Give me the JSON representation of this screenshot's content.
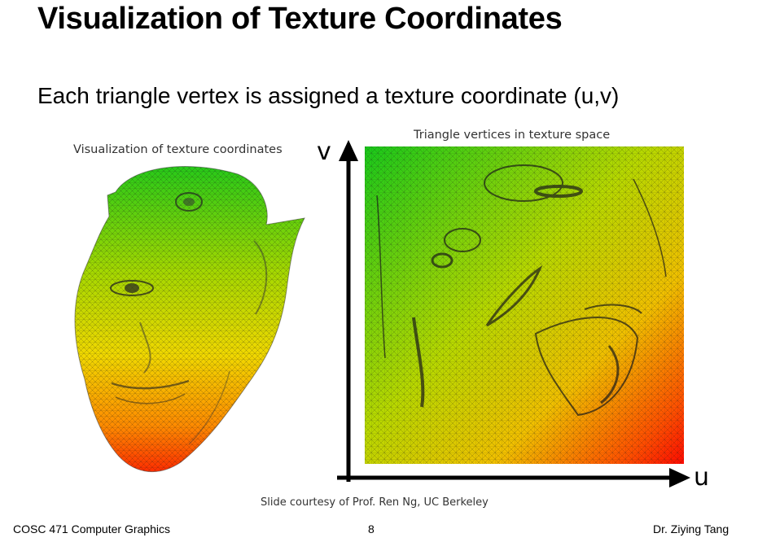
{
  "slide": {
    "title": "Visualization of Texture Coordinates",
    "subtitle": "Each triangle vertex is assigned a texture coordinate (u,v)"
  },
  "figure_left": {
    "caption": "Visualization of texture coordinates",
    "image": "gradient-colored triangle mesh of a face (green at top to red at bottom)"
  },
  "figure_right": {
    "caption": "Triangle vertices in texture space",
    "axis_u_label": "u",
    "axis_v_label": "v",
    "image": "unwrapped triangle mesh in UV space with green-to-red gradient"
  },
  "credit": "Slide courtesy of Prof. Ren Ng, UC Berkeley",
  "footer": {
    "course": "COSC 471 Computer Graphics",
    "page_number": "8",
    "author": "Dr. Ziying Tang"
  },
  "colors": {
    "gradient_top": "#22cc11",
    "gradient_mid": "#c8dd00",
    "gradient_bottom": "#ff1a00",
    "mesh_line": "#1a1a1a"
  }
}
